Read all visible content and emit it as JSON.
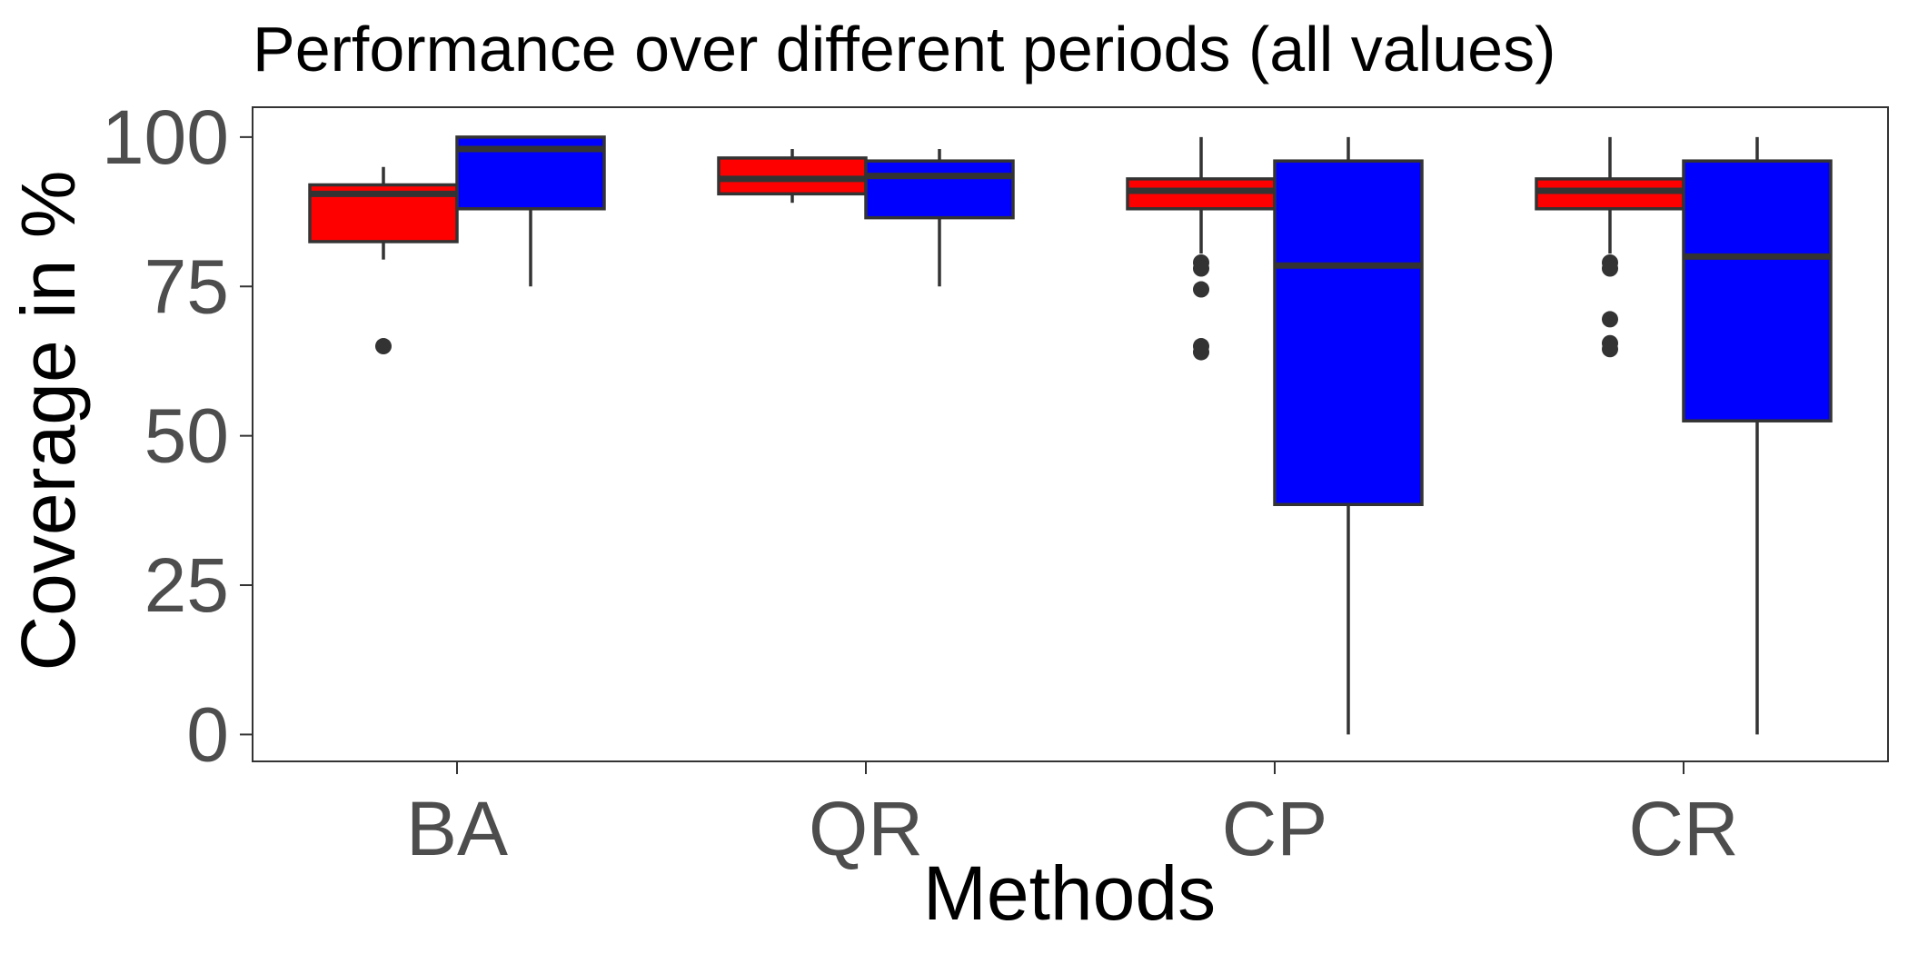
{
  "chart_data": {
    "type": "boxplot",
    "title": "Performance over different periods (all values)",
    "xlabel": "Methods",
    "ylabel": "Coverage in %",
    "ylim": [
      -4.5,
      105
    ],
    "yticks": [
      0,
      25,
      50,
      75,
      100
    ],
    "categories": [
      "BA",
      "QR",
      "CP",
      "CR"
    ],
    "grid": false,
    "legend": "none",
    "colors": {
      "series1": "#ff0000",
      "series2": "#0000ff",
      "outline": "#333333"
    },
    "series": [
      {
        "color": "#ff0000",
        "boxes": [
          {
            "category": "BA",
            "whisker_low": 79.5,
            "q1": 82.5,
            "median": 90.5,
            "q3": 92.0,
            "whisker_high": 95.0,
            "outliers": [
              65
            ]
          },
          {
            "category": "QR",
            "whisker_low": 89.0,
            "q1": 90.5,
            "median": 93.0,
            "q3": 96.5,
            "whisker_high": 98.0,
            "outliers": []
          },
          {
            "category": "CP",
            "whisker_low": 80.5,
            "q1": 88.0,
            "median": 91.0,
            "q3": 93.0,
            "whisker_high": 100.0,
            "outliers": [
              79,
              78,
              74.5,
              65,
              64
            ]
          },
          {
            "category": "CR",
            "whisker_low": 80.5,
            "q1": 88.0,
            "median": 91.0,
            "q3": 93.0,
            "whisker_high": 100.0,
            "outliers": [
              79,
              78,
              69.5,
              65.5,
              64.5
            ]
          }
        ]
      },
      {
        "color": "#0000ff",
        "boxes": [
          {
            "category": "BA",
            "whisker_low": 75.0,
            "q1": 88.0,
            "median": 98.0,
            "q3": 100.0,
            "whisker_high": 100.0,
            "outliers": []
          },
          {
            "category": "QR",
            "whisker_low": 75.0,
            "q1": 86.5,
            "median": 93.5,
            "q3": 96.0,
            "whisker_high": 98.0,
            "outliers": []
          },
          {
            "category": "CP",
            "whisker_low": 0.0,
            "q1": 38.5,
            "median": 78.5,
            "q3": 96.0,
            "whisker_high": 100.0,
            "outliers": []
          },
          {
            "category": "CR",
            "whisker_low": 0.0,
            "q1": 52.5,
            "median": 80.0,
            "q3": 96.0,
            "whisker_high": 100.0,
            "outliers": []
          }
        ]
      }
    ]
  }
}
